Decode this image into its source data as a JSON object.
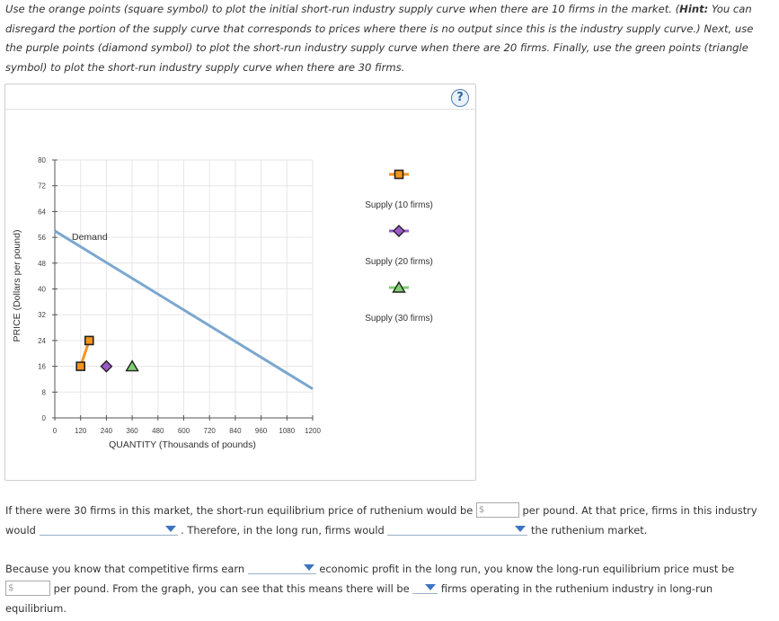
{
  "intro": {
    "part1": "Use the orange points (square symbol) to plot the initial short-run industry supply curve when there are 10 firms in the market. (",
    "hint_label": "Hint:",
    "part2": " You can disregard the portion of the supply curve that corresponds to prices where there is no output since this is the industry supply curve.) Next, use the purple points (diamond symbol) to plot the short-run industry supply curve when there are 20 firms. Finally, use the green points (triangle symbol) to plot the short-run industry supply curve when there are 30 firms."
  },
  "help_icon": "?",
  "graph": {
    "y_axis_label": "PRICE (Dollars per pound)",
    "x_axis_label": "QUANTITY (Thousands of pounds)",
    "demand_label": "Demand",
    "y_ticks": [
      "0",
      "8",
      "16",
      "24",
      "32",
      "40",
      "48",
      "56",
      "64",
      "72",
      "80"
    ],
    "x_ticks": [
      "0",
      "120",
      "240",
      "360",
      "480",
      "600",
      "720",
      "840",
      "960",
      "1080",
      "1200"
    ],
    "legend": [
      {
        "label": "Supply (10 firms)",
        "symbol": "square",
        "color": "#f7941d",
        "line_color": "#f7941d"
      },
      {
        "label": "Supply (20 firms)",
        "symbol": "diamond",
        "color": "#9b59c8",
        "line_color": "#9b59c8"
      },
      {
        "label": "Supply (30 firms)",
        "symbol": "triangle",
        "color": "#7fcf6f",
        "line_color": "#7fcf6f"
      }
    ]
  },
  "chart_data": {
    "type": "line",
    "xlabel": "QUANTITY (Thousands of pounds)",
    "ylabel": "PRICE (Dollars per pound)",
    "xlim": [
      0,
      1200
    ],
    "ylim": [
      0,
      80
    ],
    "grid": true,
    "series": [
      {
        "name": "Demand",
        "color": "#7ba7cf",
        "points": [
          [
            0,
            58
          ],
          [
            1200,
            9
          ]
        ]
      },
      {
        "name": "Supply (10 firms)",
        "color": "#f7941d",
        "symbol": "square",
        "points": [
          [
            120,
            16
          ],
          [
            160,
            24
          ]
        ]
      },
      {
        "name": "Supply (20 firms)",
        "color": "#9b59c8",
        "symbol": "diamond",
        "points": [
          [
            240,
            16
          ]
        ]
      },
      {
        "name": "Supply (30 firms)",
        "color": "#7fcf6f",
        "symbol": "triangle",
        "points": [
          [
            360,
            16
          ]
        ]
      }
    ]
  },
  "question1": {
    "line1_a": "If there were 30 firms in this market, the short-run equilibrium price of ruthenium would be",
    "price_placeholder": "$",
    "line1_b": "per pound. At that price, firms in this industry",
    "line2_a": "would",
    "line2_b": ". Therefore, in the long run, firms would",
    "line2_c": "the ruthenium market."
  },
  "question2": {
    "line1_a": "Because you know that competitive firms earn",
    "line1_b": "economic profit in the long run, you know the long-run equilibrium price must be",
    "price_placeholder": "$",
    "line2_a": "per pound. From the graph, you can see that this means there will be",
    "line2_b": "firms operating in the ruthenium industry in long-run",
    "line3": "equilibrium."
  }
}
